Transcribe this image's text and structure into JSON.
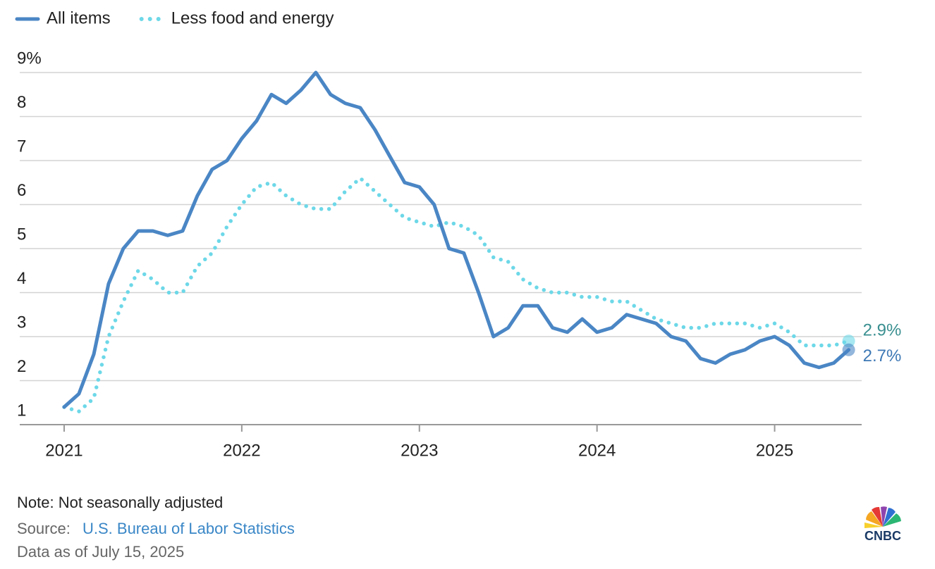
{
  "chart_data": {
    "type": "line",
    "x": [
      2021,
      2021.083,
      2021.167,
      2021.25,
      2021.333,
      2021.417,
      2021.5,
      2021.583,
      2021.667,
      2021.75,
      2021.833,
      2021.917,
      2022,
      2022.083,
      2022.167,
      2022.25,
      2022.333,
      2022.417,
      2022.5,
      2022.583,
      2022.667,
      2022.75,
      2022.833,
      2022.917,
      2023,
      2023.083,
      2023.167,
      2023.25,
      2023.333,
      2023.417,
      2023.5,
      2023.583,
      2023.667,
      2023.75,
      2023.833,
      2023.917,
      2024,
      2024.083,
      2024.167,
      2024.25,
      2024.333,
      2024.417,
      2024.5,
      2024.583,
      2024.667,
      2024.75,
      2024.833,
      2024.917,
      2025,
      2025.083,
      2025.167,
      2025.25,
      2025.333,
      2025.417
    ],
    "series": [
      {
        "name": "All items",
        "color": "#4a86c5",
        "style": "solid",
        "end_label": "2.7%",
        "end_label_color": "#3d78b5",
        "values": [
          1.4,
          1.7,
          2.6,
          4.2,
          5.0,
          5.4,
          5.4,
          5.3,
          5.4,
          6.2,
          6.8,
          7.0,
          7.5,
          7.9,
          8.5,
          8.3,
          8.6,
          9.0,
          8.5,
          8.3,
          8.2,
          7.7,
          7.1,
          6.5,
          6.4,
          6.0,
          5.0,
          4.9,
          4.0,
          3.0,
          3.2,
          3.7,
          3.7,
          3.2,
          3.1,
          3.4,
          3.1,
          3.2,
          3.5,
          3.4,
          3.3,
          3.0,
          2.9,
          2.5,
          2.4,
          2.6,
          2.7,
          2.9,
          3.0,
          2.8,
          2.4,
          2.3,
          2.4,
          2.7
        ]
      },
      {
        "name": "Less food and energy",
        "color": "#6dd8e8",
        "style": "dotted",
        "end_label": "2.9%",
        "end_label_color": "#3a8f90",
        "values": [
          1.4,
          1.3,
          1.6,
          3.0,
          3.8,
          4.5,
          4.3,
          4.0,
          4.0,
          4.6,
          4.9,
          5.5,
          6.0,
          6.4,
          6.5,
          6.2,
          6.0,
          5.9,
          5.9,
          6.3,
          6.6,
          6.3,
          6.0,
          5.7,
          5.6,
          5.5,
          5.6,
          5.5,
          5.3,
          4.8,
          4.7,
          4.3,
          4.1,
          4.0,
          4.0,
          3.9,
          3.9,
          3.8,
          3.8,
          3.6,
          3.4,
          3.3,
          3.2,
          3.2,
          3.3,
          3.3,
          3.3,
          3.2,
          3.3,
          3.1,
          2.8,
          2.8,
          2.8,
          2.9
        ]
      }
    ],
    "xlim": [
      2020.75,
      2025.49
    ],
    "xticks": [
      2021,
      2022,
      2023,
      2024,
      2025
    ],
    "ylim": [
      1,
      9
    ],
    "yticks": [
      1,
      2,
      3,
      4,
      5,
      6,
      7,
      8,
      {
        "value": 9,
        "label": "9%"
      }
    ],
    "grid": true,
    "note": "Note: Not seasonally adjusted",
    "source_label": "Source:",
    "source": "U.S. Bureau of Labor Statistics",
    "date_note": "Data as of July 15, 2025",
    "logo": "CNBC"
  }
}
